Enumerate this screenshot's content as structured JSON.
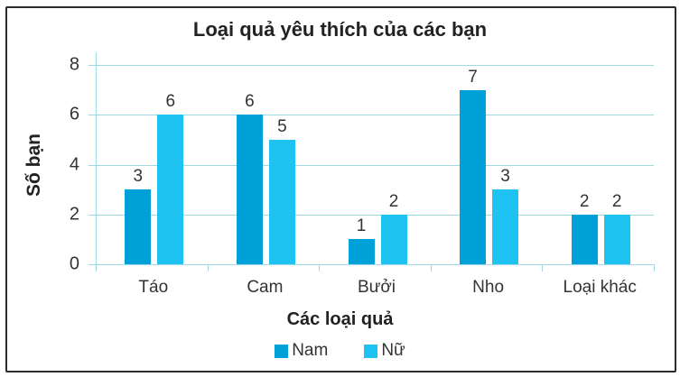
{
  "chart_data": {
    "type": "bar",
    "title": "Loại quả yêu thích của các bạn",
    "xlabel": "Các loại quả",
    "ylabel": "Số bạn",
    "categories": [
      "Táo",
      "Cam",
      "Bưởi",
      "Nho",
      "Loại khác"
    ],
    "series": [
      {
        "name": "Nam",
        "color": "#00a1d8",
        "values": [
          3,
          6,
          1,
          7,
          2
        ]
      },
      {
        "name": "Nữ",
        "color": "#1ec3f2",
        "values": [
          6,
          5,
          2,
          3,
          2
        ]
      }
    ],
    "ylim": [
      0,
      8
    ],
    "yticks": [
      0,
      2,
      4,
      6,
      8
    ],
    "grid": true,
    "legend_position": "bottom",
    "data_labels": true
  },
  "labels": {
    "title": "Loại quả yêu thích của các bạn",
    "xlabel": "Các loại quả",
    "ylabel": "Số bạn",
    "yticks": [
      "0",
      "2",
      "4",
      "6",
      "8"
    ],
    "categories": [
      "Táo",
      "Cam",
      "Bưởi",
      "Nho",
      "Loại khác"
    ],
    "legend": [
      "Nam",
      "Nữ"
    ],
    "nam": [
      "3",
      "6",
      "1",
      "7",
      "2"
    ],
    "nu": [
      "6",
      "5",
      "2",
      "3",
      "2"
    ]
  }
}
